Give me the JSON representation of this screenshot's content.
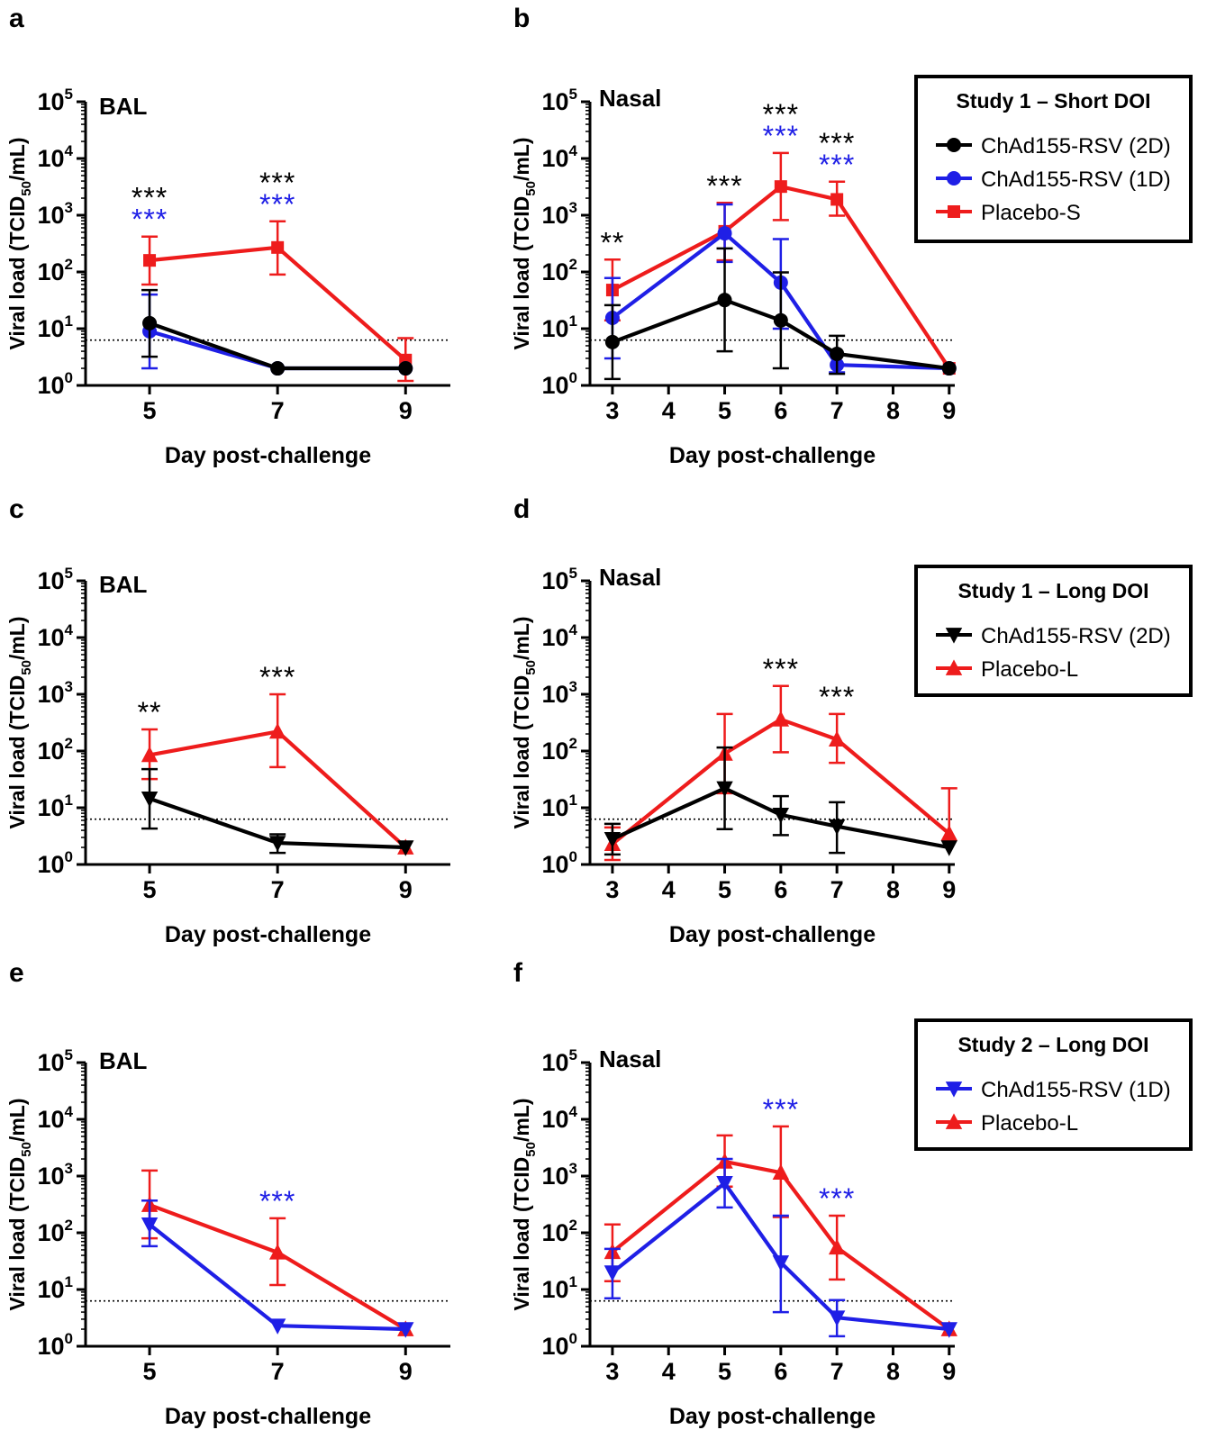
{
  "figure": {
    "y_axis_label": "Viral load (TCID",
    "y_axis_label_sub": "50",
    "y_axis_label_end": "/mL)",
    "x_axis_label": "Day post-challenge",
    "y_tick_base": "10",
    "y_tick_exponents": [
      "0",
      "1",
      "2",
      "3",
      "4",
      "5"
    ],
    "lod_value": 6.3
  },
  "legends": [
    {
      "title": "Study 1 – Short DOI",
      "entries": [
        {
          "label": "ChAd155-RSV (2D)",
          "color": "#000000",
          "marker": "circle"
        },
        {
          "label": "ChAd155-RSV (1D)",
          "color": "#1f1fe6",
          "marker": "circle"
        },
        {
          "label": "Placebo-S",
          "color": "#ee1c1c",
          "marker": "square"
        }
      ]
    },
    {
      "title": "Study 1 – Long DOI",
      "entries": [
        {
          "label": "ChAd155-RSV (2D)",
          "color": "#000000",
          "marker": "triangle-down"
        },
        {
          "label": "Placebo-L",
          "color": "#ee1c1c",
          "marker": "triangle-up"
        }
      ]
    },
    {
      "title": "Study 2 – Long DOI",
      "entries": [
        {
          "label": "ChAd155-RSV (1D)",
          "color": "#1f1fe6",
          "marker": "triangle-down"
        },
        {
          "label": "Placebo-L",
          "color": "#ee1c1c",
          "marker": "triangle-up"
        }
      ]
    }
  ],
  "chart_data": [
    {
      "panel": "a",
      "type": "line",
      "title": "BAL",
      "xlabel": "Day post-challenge",
      "ylabel": "Viral load (TCID50/mL)",
      "yscale": "log",
      "ylim": [
        1,
        100000
      ],
      "x": [
        5,
        7,
        9
      ],
      "x_ticks": [
        "5",
        "7",
        "9"
      ],
      "series": [
        {
          "name": "Placebo-S",
          "color": "#ee1c1c",
          "marker": "square",
          "values": [
            160,
            270,
            2.8
          ],
          "err_upper": [
            420,
            780,
            6.8
          ],
          "err_lower": [
            60,
            90,
            1.2
          ]
        },
        {
          "name": "ChAd155-RSV (1D)",
          "color": "#1f1fe6",
          "marker": "circle",
          "values": [
            9,
            2,
            2
          ],
          "err_upper": [
            40,
            null,
            null
          ],
          "err_lower": [
            2,
            null,
            null
          ]
        },
        {
          "name": "ChAd155-RSV (2D)",
          "color": "#000000",
          "marker": "circle",
          "values": [
            12.5,
            2,
            2
          ],
          "err_upper": [
            48,
            null,
            null
          ],
          "err_lower": [
            3.2,
            null,
            null
          ]
        }
      ],
      "annotations": [
        {
          "x": 5,
          "text": "***",
          "color": "#000000",
          "level": 0
        },
        {
          "x": 5,
          "text": "***",
          "color": "#1f1fe6",
          "level": 1
        },
        {
          "x": 7,
          "text": "***",
          "color": "#000000",
          "level": 0
        },
        {
          "x": 7,
          "text": "***",
          "color": "#1f1fe6",
          "level": 1
        }
      ]
    },
    {
      "panel": "b",
      "type": "line",
      "title": "Nasal",
      "xlabel": "Day post-challenge",
      "ylabel": "Viral load (TCID50/mL)",
      "yscale": "log",
      "ylim": [
        1,
        100000
      ],
      "x": [
        3,
        5,
        6,
        7,
        9
      ],
      "x_ticks": [
        "3",
        "4",
        "5",
        "6",
        "7",
        "8",
        "9"
      ],
      "series": [
        {
          "name": "Placebo-S",
          "color": "#ee1c1c",
          "marker": "square",
          "values": [
            48,
            520,
            3200,
            1900,
            2
          ],
          "err_upper": [
            165,
            1650,
            12500,
            3900,
            null
          ],
          "err_lower": [
            14,
            160,
            820,
            980,
            null
          ]
        },
        {
          "name": "ChAd155-RSV (1D)",
          "color": "#1f1fe6",
          "marker": "circle",
          "values": [
            15.5,
            480,
            65,
            2.3,
            2
          ],
          "err_upper": [
            78,
            1550,
            380,
            null,
            null
          ],
          "err_lower": [
            3,
            150,
            10,
            1.7,
            null
          ]
        },
        {
          "name": "ChAd155-RSV (2D)",
          "color": "#000000",
          "marker": "circle",
          "values": [
            5.8,
            32,
            14,
            3.6,
            2
          ],
          "err_upper": [
            26,
            260,
            98,
            7.5,
            null
          ],
          "err_lower": [
            1.3,
            4,
            2,
            1.6,
            null
          ]
        }
      ],
      "annotations": [
        {
          "x": 3,
          "text": "**",
          "color": "#000000",
          "level": 0
        },
        {
          "x": 5,
          "text": "***",
          "color": "#000000",
          "level": 0
        },
        {
          "x": 6,
          "text": "***",
          "color": "#000000",
          "level": 0
        },
        {
          "x": 6,
          "text": "***",
          "color": "#1f1fe6",
          "level": 1
        },
        {
          "x": 7,
          "text": "***",
          "color": "#000000",
          "level": 0
        },
        {
          "x": 7,
          "text": "***",
          "color": "#1f1fe6",
          "level": 1
        }
      ]
    },
    {
      "panel": "c",
      "type": "line",
      "title": "BAL",
      "xlabel": "Day post-challenge",
      "ylabel": "Viral load (TCID50/mL)",
      "yscale": "log",
      "ylim": [
        1,
        100000
      ],
      "x": [
        5,
        7,
        9
      ],
      "x_ticks": [
        "5",
        "7",
        "9"
      ],
      "series": [
        {
          "name": "Placebo-L",
          "color": "#ee1c1c",
          "marker": "triangle-up",
          "values": [
            85,
            220,
            2
          ],
          "err_upper": [
            240,
            1000,
            null
          ],
          "err_lower": [
            32,
            52,
            null
          ]
        },
        {
          "name": "ChAd155-RSV (2D)",
          "color": "#000000",
          "marker": "triangle-down",
          "values": [
            14.5,
            2.4,
            2
          ],
          "err_upper": [
            48,
            3.4,
            null
          ],
          "err_lower": [
            4.3,
            1.6,
            null
          ]
        }
      ],
      "annotations": [
        {
          "x": 5,
          "text": "**",
          "color": "#000000",
          "level": 0
        },
        {
          "x": 7,
          "text": "***",
          "color": "#000000",
          "level": 0
        }
      ]
    },
    {
      "panel": "d",
      "type": "line",
      "title": "Nasal",
      "xlabel": "Day post-challenge",
      "ylabel": "Viral load (TCID50/mL)",
      "yscale": "log",
      "ylim": [
        1,
        100000
      ],
      "x": [
        3,
        5,
        6,
        7,
        9
      ],
      "x_ticks": [
        "3",
        "4",
        "5",
        "6",
        "7",
        "8",
        "9"
      ],
      "series": [
        {
          "name": "Placebo-L",
          "color": "#ee1c1c",
          "marker": "triangle-up",
          "values": [
            2.3,
            90,
            360,
            160,
            3.5
          ],
          "err_upper": [
            4.5,
            450,
            1400,
            450,
            22
          ],
          "err_lower": [
            1.2,
            18,
            95,
            62,
            null
          ]
        },
        {
          "name": "ChAd155-RSV (2D)",
          "color": "#000000",
          "marker": "triangle-down",
          "values": [
            2.8,
            22,
            7.5,
            4.7,
            2
          ],
          "err_upper": [
            5.2,
            115,
            16,
            12.5,
            null
          ],
          "err_lower": [
            1.5,
            4.2,
            3.3,
            1.6,
            null
          ]
        }
      ],
      "annotations": [
        {
          "x": 6,
          "text": "***",
          "color": "#000000",
          "level": 0
        },
        {
          "x": 7,
          "text": "***",
          "color": "#000000",
          "level": 0
        }
      ]
    },
    {
      "panel": "e",
      "type": "line",
      "title": "BAL",
      "xlabel": "Day post-challenge",
      "ylabel": "Viral load (TCID50/mL)",
      "yscale": "log",
      "ylim": [
        1,
        100000
      ],
      "x": [
        5,
        7,
        9
      ],
      "x_ticks": [
        "5",
        "7",
        "9"
      ],
      "series": [
        {
          "name": "Placebo-L",
          "color": "#ee1c1c",
          "marker": "triangle-up",
          "values": [
            310,
            45,
            2
          ],
          "err_upper": [
            1250,
            180,
            null
          ],
          "err_lower": [
            80,
            12,
            null
          ]
        },
        {
          "name": "ChAd155-RSV (1D)",
          "color": "#1f1fe6",
          "marker": "triangle-down",
          "values": [
            140,
            2.3,
            2
          ],
          "err_upper": [
            370,
            null,
            null
          ],
          "err_lower": [
            58,
            null,
            null
          ]
        }
      ],
      "annotations": [
        {
          "x": 7,
          "text": "***",
          "color": "#1f1fe6",
          "level": 0
        }
      ]
    },
    {
      "panel": "f",
      "type": "line",
      "title": "Nasal",
      "xlabel": "Day post-challenge",
      "ylabel": "Viral load (TCID50/mL)",
      "yscale": "log",
      "ylim": [
        1,
        100000
      ],
      "x": [
        3,
        5,
        6,
        7,
        9
      ],
      "x_ticks": [
        "3",
        "4",
        "5",
        "6",
        "7",
        "8",
        "9"
      ],
      "series": [
        {
          "name": "Placebo-L",
          "color": "#ee1c1c",
          "marker": "triangle-up",
          "values": [
            46,
            1800,
            1150,
            55,
            2
          ],
          "err_upper": [
            140,
            5200,
            7500,
            200,
            null
          ],
          "err_lower": [
            14,
            650,
            190,
            15,
            null
          ]
        },
        {
          "name": "ChAd155-RSV (1D)",
          "color": "#1f1fe6",
          "marker": "triangle-down",
          "values": [
            20,
            750,
            30,
            3.2,
            2
          ],
          "err_upper": [
            52,
            2000,
            200,
            6.5,
            null
          ],
          "err_lower": [
            7,
            280,
            4,
            1.5,
            null
          ]
        }
      ],
      "annotations": [
        {
          "x": 6,
          "text": "***",
          "color": "#1f1fe6",
          "level": 0
        },
        {
          "x": 7,
          "text": "***",
          "color": "#1f1fe6",
          "level": 0
        }
      ]
    }
  ]
}
